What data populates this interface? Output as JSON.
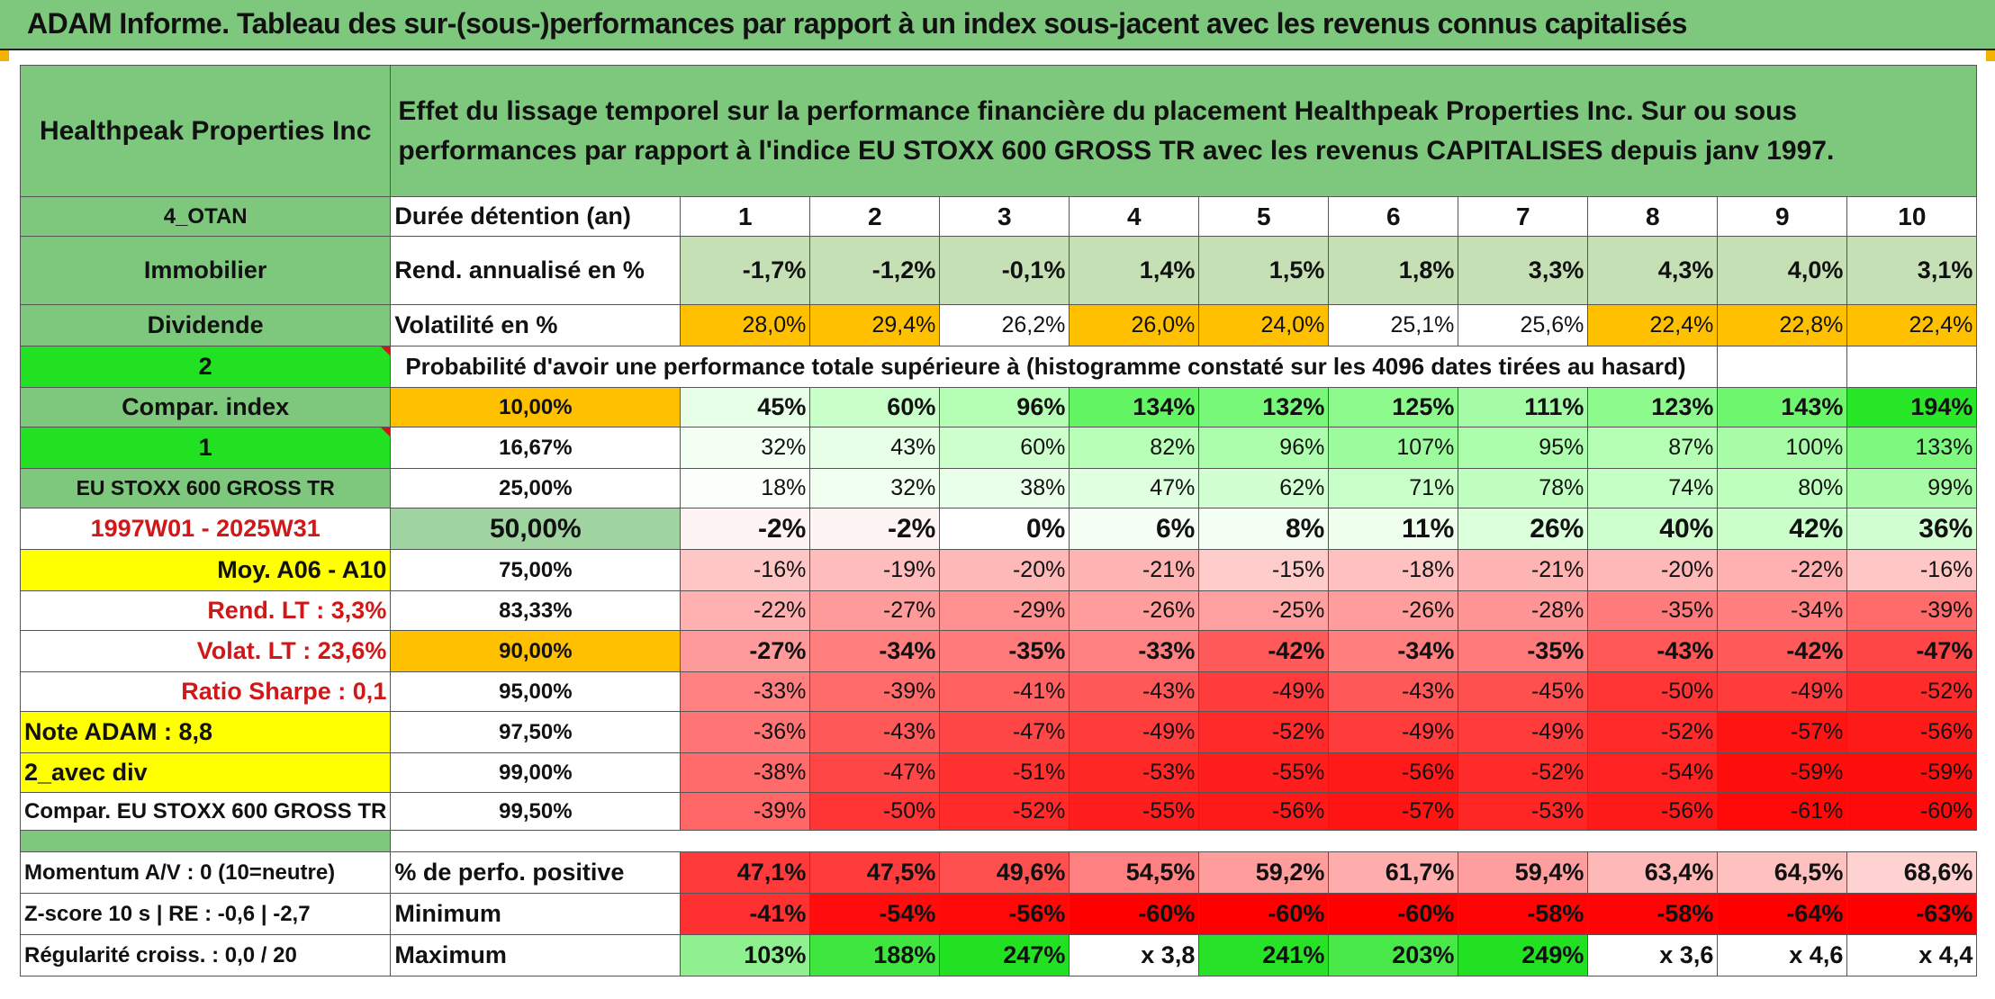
{
  "title": "ADAM Informe. Tableau des sur-(sous-)performances par rapport à un index sous-jacent avec les revenus connus capitalisés",
  "company": "Healthpeak Properties Inc",
  "description": "Effet du lissage temporel sur la performance financière du placement Healthpeak Properties Inc. Sur ou sous performances par rapport à l'indice EU STOXX 600 GROSS TR avec les revenus CAPITALISES depuis janv 1997.",
  "left_labels": {
    "otan": "4_OTAN",
    "sector": "Immobilier",
    "dividend": "Dividende",
    "param1": "2",
    "compar_index": "Compar. index",
    "param2": "1",
    "index_name": "EU STOXX 600 GROSS TR",
    "period": "1997W01 - 2025W31",
    "moy": "Moy. A06 - A10",
    "rend_lt": "Rend. LT :   3,3%",
    "volat_lt": "Volat. LT :   23,6%",
    "sharpe": "Ratio Sharpe :   0,1",
    "note": "Note ADAM : 8,8",
    "avec_div": "2_avec div",
    "compar_full": "Compar. EU STOXX 600 GROSS TR",
    "momentum": "Momentum A/V : 0 (10=neutre)",
    "zscore": "Z-score 10 s | RE : -0,6 | -2,7",
    "regularite": "Régularité croiss. : 0,0 / 20"
  },
  "row_labels": {
    "duree": "Durée détention (an)",
    "rend": "Rend. annualisé en %",
    "vol": "Volatilité en %",
    "prob": "Probabilité d'avoir une performance totale supérieure à (histogramme constaté sur les 4096 dates tirées au hasard)",
    "positive": "% de perfo. positive",
    "minimum": "Minimum",
    "maximum": "Maximum"
  },
  "years": [
    "1",
    "2",
    "3",
    "4",
    "5",
    "6",
    "7",
    "8",
    "9",
    "10"
  ],
  "rend": [
    "-1,7%",
    "-1,2%",
    "-0,1%",
    "1,4%",
    "1,5%",
    "1,8%",
    "3,3%",
    "4,3%",
    "4,0%",
    "3,1%"
  ],
  "vol": [
    "28,0%",
    "29,4%",
    "26,2%",
    "26,0%",
    "24,0%",
    "25,1%",
    "25,6%",
    "22,4%",
    "22,8%",
    "22,4%"
  ],
  "percentiles": [
    {
      "p": "10,00%",
      "v": [
        "45%",
        "60%",
        "96%",
        "134%",
        "132%",
        "125%",
        "111%",
        "123%",
        "143%",
        "194%"
      ]
    },
    {
      "p": "16,67%",
      "v": [
        "32%",
        "43%",
        "60%",
        "82%",
        "96%",
        "107%",
        "95%",
        "87%",
        "100%",
        "133%"
      ]
    },
    {
      "p": "25,00%",
      "v": [
        "18%",
        "32%",
        "38%",
        "47%",
        "62%",
        "71%",
        "78%",
        "74%",
        "80%",
        "99%"
      ]
    },
    {
      "p": "50,00%",
      "v": [
        "-2%",
        "-2%",
        "0%",
        "6%",
        "8%",
        "11%",
        "26%",
        "40%",
        "42%",
        "36%"
      ]
    },
    {
      "p": "75,00%",
      "v": [
        "-16%",
        "-19%",
        "-20%",
        "-21%",
        "-15%",
        "-18%",
        "-21%",
        "-20%",
        "-22%",
        "-16%"
      ]
    },
    {
      "p": "83,33%",
      "v": [
        "-22%",
        "-27%",
        "-29%",
        "-26%",
        "-25%",
        "-26%",
        "-28%",
        "-35%",
        "-34%",
        "-39%"
      ]
    },
    {
      "p": "90,00%",
      "v": [
        "-27%",
        "-34%",
        "-35%",
        "-33%",
        "-42%",
        "-34%",
        "-35%",
        "-43%",
        "-42%",
        "-47%"
      ]
    },
    {
      "p": "95,00%",
      "v": [
        "-33%",
        "-39%",
        "-41%",
        "-43%",
        "-49%",
        "-43%",
        "-45%",
        "-50%",
        "-49%",
        "-52%"
      ]
    },
    {
      "p": "97,50%",
      "v": [
        "-36%",
        "-43%",
        "-47%",
        "-49%",
        "-52%",
        "-49%",
        "-49%",
        "-52%",
        "-57%",
        "-56%"
      ]
    },
    {
      "p": "99,00%",
      "v": [
        "-38%",
        "-47%",
        "-51%",
        "-53%",
        "-55%",
        "-56%",
        "-52%",
        "-54%",
        "-59%",
        "-59%"
      ]
    },
    {
      "p": "99,50%",
      "v": [
        "-39%",
        "-50%",
        "-52%",
        "-55%",
        "-56%",
        "-57%",
        "-53%",
        "-56%",
        "-61%",
        "-60%"
      ]
    }
  ],
  "positive": [
    "47,1%",
    "47,5%",
    "49,6%",
    "54,5%",
    "59,2%",
    "61,7%",
    "59,4%",
    "63,4%",
    "64,5%",
    "68,6%"
  ],
  "minimum": [
    "-41%",
    "-54%",
    "-56%",
    "-60%",
    "-60%",
    "-60%",
    "-58%",
    "-58%",
    "-64%",
    "-63%"
  ],
  "maximum": [
    "103%",
    "188%",
    "247%",
    "x 3,8",
    "241%",
    "203%",
    "249%",
    "x 3,6",
    "x 4,6",
    "x 4,4"
  ],
  "colors": {
    "rend": [
      "#c5e0b4",
      "#c5e0b4",
      "#c5e0b4",
      "#c5e0b4",
      "#c5e0b4",
      "#c5e0b4",
      "#c5e0b4",
      "#c5e0b4",
      "#c5e0b4",
      "#c5e0b4"
    ],
    "vol": [
      "#ffc000",
      "#ffc000",
      "#fff",
      "#ffc000",
      "#ffc000",
      "#fff",
      "#fff",
      "#ffc000",
      "#ffc000",
      "#ffc000"
    ],
    "percentiles": [
      [
        "#e6ffe6",
        "#c8ffc8",
        "#b4ffb4",
        "#64f564",
        "#78f878",
        "#8cfa8c",
        "#a6fca6",
        "#8cfa8c",
        "#6ef66e",
        "#28e628"
      ],
      [
        "#f4fff4",
        "#e6ffe6",
        "#ccffcc",
        "#b8ffb8",
        "#acfdac",
        "#9cfb9c",
        "#acfdac",
        "#b4ffb4",
        "#a8fca8",
        "#7ef87e"
      ],
      [
        "#fbfffb",
        "#f0fff0",
        "#eaffea",
        "#e0ffe0",
        "#d2ffd2",
        "#c8ffc8",
        "#c0ffc0",
        "#c6ffc6",
        "#beffbe",
        "#a8fca8"
      ],
      [
        "#fff4f4",
        "#fff4f4",
        "#ffffff",
        "#f6fff6",
        "#f2fff2",
        "#eeffee",
        "#dcffdc",
        "#ccffcc",
        "#caffca",
        "#d2ffd2"
      ],
      [
        "#ffc6c6",
        "#ffbcbc",
        "#ffb8b8",
        "#ffb4b4",
        "#ffcccc",
        "#ffc0c0",
        "#ffb4b4",
        "#ffb8b8",
        "#ffb0b0",
        "#ffc6c6"
      ],
      [
        "#ffb0b0",
        "#ff9a9a",
        "#ff9090",
        "#ff9c9c",
        "#ffa0a0",
        "#ff9c9c",
        "#ff9494",
        "#ff7a7a",
        "#ff7e7e",
        "#ff6a6a"
      ],
      [
        "#ff9a9a",
        "#ff7e7e",
        "#ff7a7a",
        "#ff8080",
        "#ff5a5a",
        "#ff7e7e",
        "#ff7a7a",
        "#ff5656",
        "#ff5a5a",
        "#ff4646"
      ],
      [
        "#ff8080",
        "#ff6a6a",
        "#ff6060",
        "#ff5858",
        "#ff3c3c",
        "#ff5858",
        "#ff5050",
        "#ff3434",
        "#ff3c3c",
        "#ff2a2a"
      ],
      [
        "#ff7474",
        "#ff5858",
        "#ff4646",
        "#ff3c3c",
        "#ff2a2a",
        "#ff3c3c",
        "#ff3c3c",
        "#ff2a2a",
        "#ff1414",
        "#ff1a1a"
      ],
      [
        "#ff6a6a",
        "#ff4646",
        "#ff3030",
        "#ff2626",
        "#ff1e1e",
        "#ff1a1a",
        "#ff2a2a",
        "#ff2222",
        "#ff0e0e",
        "#ff0e0e"
      ],
      [
        "#ff6666",
        "#ff3434",
        "#ff2a2a",
        "#ff1e1e",
        "#ff1a1a",
        "#ff1414",
        "#ff2626",
        "#ff1a1a",
        "#ff0808",
        "#ff0a0a"
      ]
    ],
    "positive": [
      "#ff3a3a",
      "#ff3c3c",
      "#ff5050",
      "#ff8080",
      "#ff9c9c",
      "#ffacac",
      "#ff9e9e",
      "#ffb8b8",
      "#ffc0c0",
      "#ffd2d2"
    ],
    "minimum": [
      "#ff3030",
      "#ff0c0c",
      "#ff0808",
      "#ff0000",
      "#ff0000",
      "#ff0000",
      "#ff0404",
      "#ff0404",
      "#ff0000",
      "#ff0000"
    ],
    "maximum": [
      "#8ef08e",
      "#40e640",
      "#22e022",
      "#ffffff",
      "#28e228",
      "#48e848",
      "#22e022",
      "#ffffff",
      "#ffffff",
      "#ffffff"
    ]
  }
}
